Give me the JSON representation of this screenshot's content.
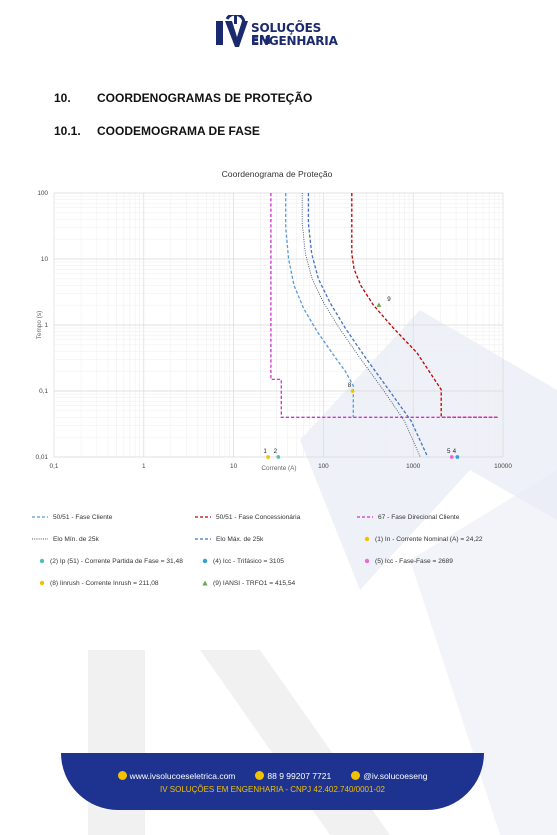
{
  "logo": {
    "line1": "SOLUÇÕES EM",
    "line2": "ENGENHARIA"
  },
  "headings": [
    {
      "number": "10.",
      "text": "COORDENOGRAMAS DE PROTEÇÃO"
    },
    {
      "number": "10.1.",
      "text": "COODEMOGRAMA DE FASE"
    }
  ],
  "chart_data": {
    "type": "line",
    "title": "Coordenograma de Proteção",
    "xlabel": "Corrente (A)",
    "ylabel": "Tempo (s)",
    "x_scale": "log",
    "y_scale": "log",
    "xlim": [
      0.1,
      10000
    ],
    "ylim": [
      0.01,
      100
    ],
    "x_ticks": [
      "0,1",
      "1",
      "10",
      "100",
      "1000",
      "10000"
    ],
    "y_ticks": [
      "0,01",
      "0,1",
      "1",
      "10",
      "100"
    ],
    "grid": true,
    "series": [
      {
        "name": "50/51 - Fase Cliente",
        "color": "#5b9bd5",
        "style": "dashed",
        "x": [
          38,
          38,
          41,
          47,
          60,
          85,
          130,
          175,
          215,
          215
        ],
        "y": [
          100,
          30,
          10,
          4,
          1.8,
          0.8,
          0.35,
          0.2,
          0.12,
          0.04
        ]
      },
      {
        "name": "50/51 - Fase Concessionária",
        "color": "#c00000",
        "style": "dashed",
        "x": [
          207,
          207,
          220,
          260,
          360,
          600,
          1100,
          2050,
          2050,
          9000
        ],
        "y": [
          100,
          12,
          7,
          4,
          2,
          0.9,
          0.38,
          0.105,
          0.04,
          0.04
        ]
      },
      {
        "name": "67 - Fase Direcional Cliente",
        "color": "#cc33cc",
        "style": "dashed",
        "x": [
          26,
          26,
          34,
          34,
          9000
        ],
        "y": [
          100,
          0.15,
          0.15,
          0.04,
          0.04
        ]
      },
      {
        "name": "Elo Mín. de 25k",
        "color": "#44546a",
        "style": "dotted",
        "x": [
          58,
          58,
          63,
          75,
          100,
          150,
          250,
          450,
          800,
          1200
        ],
        "y": [
          100,
          35,
          12,
          5,
          2.2,
          0.9,
          0.33,
          0.11,
          0.035,
          0.01
        ]
      },
      {
        "name": "Elo Máx. de 25k",
        "color": "#4472c4",
        "style": "dashed",
        "x": [
          68,
          68,
          74,
          88,
          118,
          175,
          290,
          520,
          950,
          1450
        ],
        "y": [
          100,
          35,
          12,
          5,
          2.2,
          0.9,
          0.33,
          0.11,
          0.035,
          0.01
        ]
      }
    ],
    "points": [
      {
        "label": "1",
        "legend": "(1) In - Corrente Nominal (A) = 24,22",
        "x": 24.22,
        "y": 0.01,
        "color": "#f2c200",
        "marker": "circle"
      },
      {
        "label": "2",
        "legend": "(2) Ip (51) - Corrente Partida de Fase = 31,48",
        "x": 31.48,
        "y": 0.01,
        "color": "#4fc1b5",
        "marker": "circle"
      },
      {
        "label": "4",
        "legend": "(4) Icc - Trifásico = 3105",
        "x": 3105,
        "y": 0.01,
        "color": "#2f9fd8",
        "marker": "circle"
      },
      {
        "label": "5",
        "legend": "(5) Icc - Fase-Fase = 2689",
        "x": 2689,
        "y": 0.01,
        "color": "#e96ad0",
        "marker": "circle"
      },
      {
        "label": "8",
        "legend": "(8) Iinrush - Corrente Inrush = 211,08",
        "x": 211.08,
        "y": 0.1,
        "color": "#f2c200",
        "marker": "circle"
      },
      {
        "label": "9",
        "legend": "(9) IANSI - TRFO1 = 415,54",
        "x": 415.54,
        "y": 2,
        "color": "#6aa84f",
        "marker": "triangle"
      }
    ]
  },
  "footer": {
    "website": "www.ivsolucoeseletrica.com",
    "phone": "88 9 99207 7721",
    "instagram": "@iv.solucoeseng",
    "company": "IV SOLUÇÕES EM ENGENHARIA - CNPJ  42.402.740/0001-02"
  }
}
